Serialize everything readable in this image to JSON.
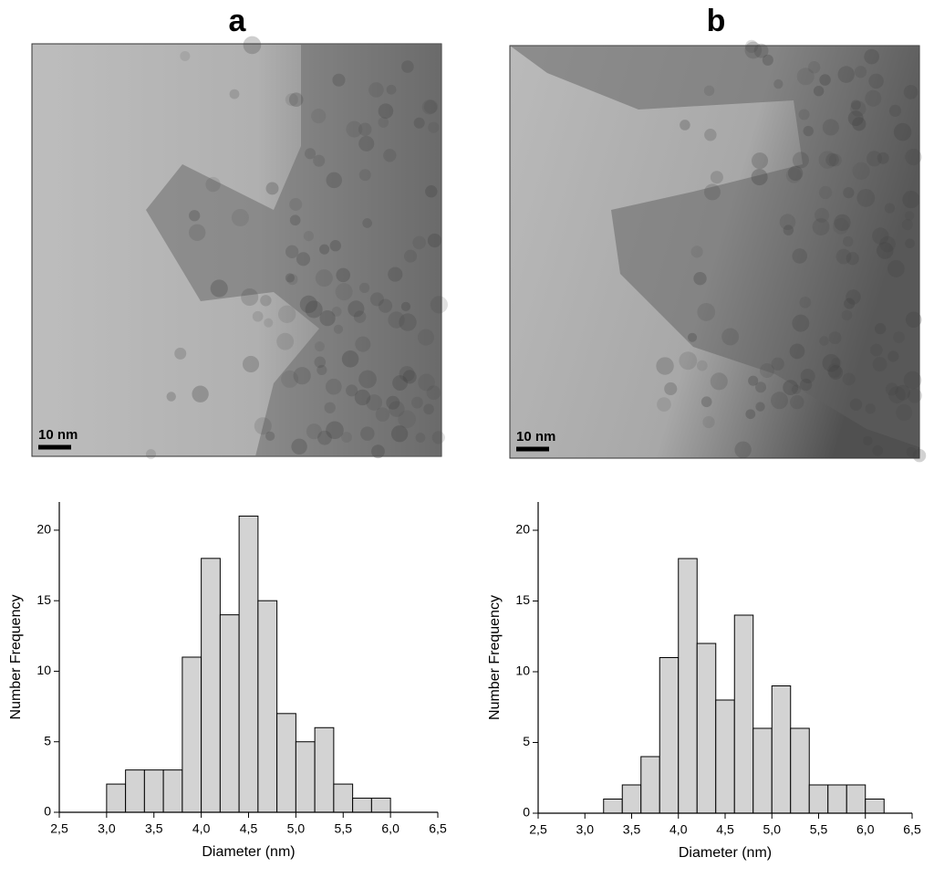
{
  "panels": [
    {
      "label": "a",
      "scale_bar": "10 nm"
    },
    {
      "label": "b",
      "scale_bar": "10 nm"
    }
  ],
  "chart_data": [
    {
      "type": "histogram",
      "xlabel": "Diameter (nm)",
      "ylabel": "Number Frequency",
      "color": "#d3d3d3",
      "bins": [
        3.0,
        3.2,
        3.4,
        3.6,
        3.8,
        4.0,
        4.2,
        4.4,
        4.6,
        4.8,
        5.0,
        5.2,
        5.4,
        5.6,
        5.8,
        6.0
      ],
      "values": [
        2,
        3,
        3,
        3,
        11,
        18,
        14,
        21,
        15,
        7,
        5,
        6,
        2,
        1,
        1
      ],
      "xlim": [
        2.5,
        6.5
      ],
      "xticks": [
        {
          "value": 2.5,
          "label": "2,5"
        },
        {
          "value": 3.0,
          "label": "3,0"
        },
        {
          "value": 3.5,
          "label": "3,5"
        },
        {
          "value": 4.0,
          "label": "4,0"
        },
        {
          "value": 4.5,
          "label": "4,5"
        },
        {
          "value": 5.0,
          "label": "5,0"
        },
        {
          "value": 5.5,
          "label": "5,5"
        },
        {
          "value": 6.0,
          "label": "6,0"
        },
        {
          "value": 6.5,
          "label": "6,5"
        }
      ],
      "ylim": [
        0,
        22
      ],
      "yticks": [
        0,
        5,
        10,
        15,
        20
      ]
    },
    {
      "type": "histogram",
      "xlabel": "Diameter (nm)",
      "ylabel": "Number Frequency",
      "color": "#d3d3d3",
      "bins": [
        3.2,
        3.4,
        3.6,
        3.8,
        4.0,
        4.2,
        4.4,
        4.6,
        4.8,
        5.0,
        5.2,
        5.4,
        5.6,
        5.8,
        6.0,
        6.2
      ],
      "values": [
        1,
        2,
        4,
        11,
        18,
        12,
        8,
        14,
        6,
        9,
        6,
        2,
        2,
        2,
        1
      ],
      "xlim": [
        2.5,
        6.5
      ],
      "xticks": [
        {
          "value": 2.5,
          "label": "2,5"
        },
        {
          "value": 3.0,
          "label": "3,0"
        },
        {
          "value": 3.5,
          "label": "3,5"
        },
        {
          "value": 4.0,
          "label": "4,0"
        },
        {
          "value": 4.5,
          "label": "4,5"
        },
        {
          "value": 5.0,
          "label": "5,0"
        },
        {
          "value": 5.5,
          "label": "5,5"
        },
        {
          "value": 6.0,
          "label": "6,0"
        },
        {
          "value": 6.5,
          "label": "6,5"
        }
      ],
      "ylim": [
        0,
        22
      ],
      "yticks": [
        0,
        5,
        10,
        15,
        20
      ]
    }
  ]
}
